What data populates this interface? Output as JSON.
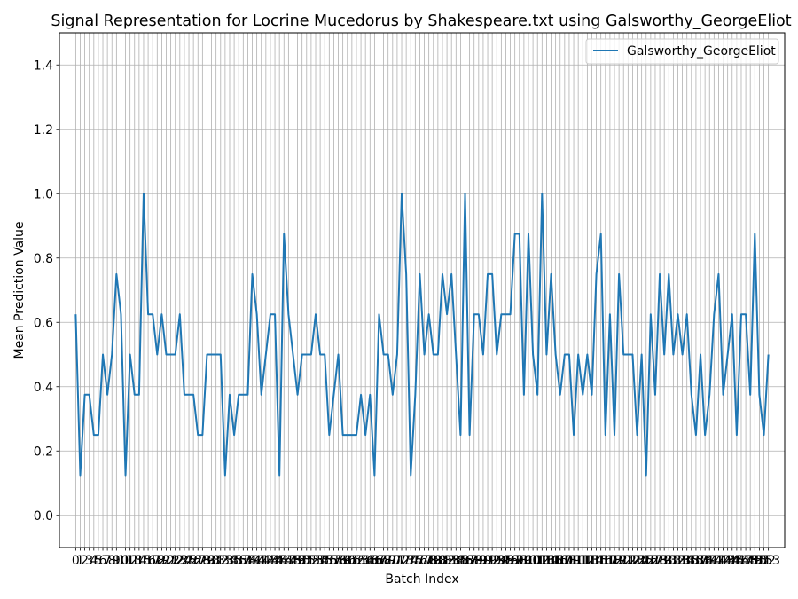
{
  "chart_data": {
    "type": "line",
    "title": "Signal Representation for Locrine Mucedorus by Shakespeare.txt using Galsworthy_GeorgeEliot",
    "xlabel": "Batch Index",
    "ylabel": "Mean Prediction Value",
    "xlim": [
      -3.6,
      156.6
    ],
    "ylim": [
      -0.1,
      1.5
    ],
    "yticks": [
      0.0,
      0.2,
      0.4,
      0.6,
      0.8,
      1.0,
      1.2,
      1.4
    ],
    "ytick_labels": [
      "0.0",
      "0.2",
      "0.4",
      "0.6",
      "0.8",
      "1.0",
      "1.2",
      "1.4"
    ],
    "grid": true,
    "legend_position": "top-right",
    "series": [
      {
        "name": "Galsworthy_GeorgeEliot",
        "color": "#1f77b4",
        "values": [
          0.625,
          0.125,
          0.375,
          0.375,
          0.25,
          0.25,
          0.5,
          0.375,
          0.5,
          0.75,
          0.625,
          0.125,
          0.5,
          0.375,
          0.375,
          1.0,
          0.625,
          0.625,
          0.5,
          0.625,
          0.5,
          0.5,
          0.5,
          0.625,
          0.375,
          0.375,
          0.375,
          0.25,
          0.25,
          0.5,
          0.5,
          0.5,
          0.5,
          0.125,
          0.375,
          0.25,
          0.375,
          0.375,
          0.375,
          0.75,
          0.625,
          0.375,
          0.5,
          0.625,
          0.625,
          0.125,
          0.875,
          0.625,
          0.5,
          0.375,
          0.5,
          0.5,
          0.5,
          0.625,
          0.5,
          0.5,
          0.25,
          0.375,
          0.5,
          0.25,
          0.25,
          0.25,
          0.25,
          0.375,
          0.25,
          0.375,
          0.125,
          0.625,
          0.5,
          0.5,
          0.375,
          0.5,
          1.0,
          0.75,
          0.125,
          0.375,
          0.75,
          0.5,
          0.625,
          0.5,
          0.5,
          0.75,
          0.625,
          0.75,
          0.5,
          0.25,
          1.0,
          0.25,
          0.625,
          0.625,
          0.5,
          0.75,
          0.75,
          0.5,
          0.625,
          0.625,
          0.625,
          0.875,
          0.875,
          0.375,
          0.875,
          0.5,
          0.375,
          1.0,
          0.5,
          0.75,
          0.5,
          0.375,
          0.5,
          0.5,
          0.25,
          0.5,
          0.375,
          0.5,
          0.375,
          0.75,
          0.875,
          0.25,
          0.625,
          0.25,
          0.75,
          0.5,
          0.5,
          0.5,
          0.25,
          0.5,
          0.125,
          0.625,
          0.375,
          0.75,
          0.5,
          0.75,
          0.5,
          0.625,
          0.5,
          0.625,
          0.375,
          0.25,
          0.5,
          0.25,
          0.375,
          0.625,
          0.75,
          0.375,
          0.5,
          0.625,
          0.25,
          0.625,
          0.625,
          0.375,
          0.875,
          0.375,
          0.25,
          0.5
        ]
      }
    ]
  }
}
